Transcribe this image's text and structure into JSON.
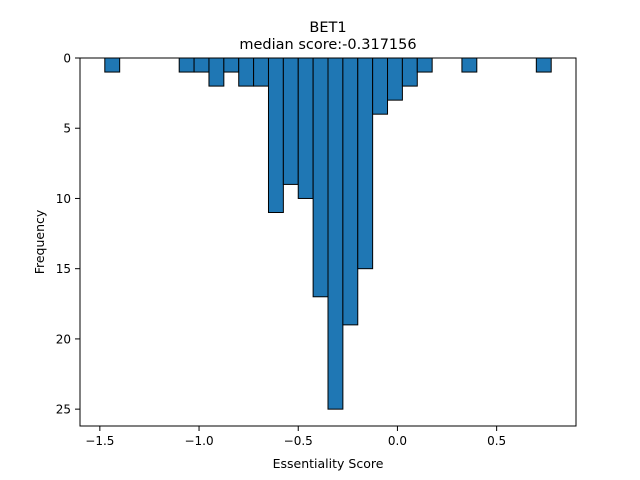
{
  "chart_data": {
    "type": "bar",
    "title": "BET1",
    "subtitle": "median score:-0.317156",
    "xlabel": "Essentiality Score",
    "ylabel": "Frequency",
    "xlim": [
      -1.6,
      0.9
    ],
    "ylim": [
      26.2,
      0
    ],
    "y_inverted": true,
    "grid": false,
    "legend": "none",
    "bar_color": "#1f77b4",
    "bar_edge_color": "#000000",
    "bin_width": 0.075,
    "x_ticks": [
      -1.5,
      -1.0,
      -0.5,
      0.0,
      0.5
    ],
    "x_tick_labels": [
      "−1.5",
      "−1.0",
      "−0.5",
      "0.0",
      "0.5"
    ],
    "y_ticks": [
      0,
      5,
      10,
      15,
      20,
      25
    ],
    "y_tick_labels": [
      "0",
      "5",
      "10",
      "15",
      "20",
      "25"
    ],
    "bins": [
      {
        "x0": -1.475,
        "x1": -1.4,
        "count": 1
      },
      {
        "x0": -1.4,
        "x1": -1.325,
        "count": 0
      },
      {
        "x0": -1.325,
        "x1": -1.25,
        "count": 0
      },
      {
        "x0": -1.25,
        "x1": -1.175,
        "count": 0
      },
      {
        "x0": -1.175,
        "x1": -1.1,
        "count": 0
      },
      {
        "x0": -1.1,
        "x1": -1.025,
        "count": 1
      },
      {
        "x0": -1.025,
        "x1": -0.95,
        "count": 1
      },
      {
        "x0": -0.95,
        "x1": -0.875,
        "count": 2
      },
      {
        "x0": -0.875,
        "x1": -0.8,
        "count": 1
      },
      {
        "x0": -0.8,
        "x1": -0.725,
        "count": 2
      },
      {
        "x0": -0.725,
        "x1": -0.65,
        "count": 2
      },
      {
        "x0": -0.65,
        "x1": -0.575,
        "count": 11
      },
      {
        "x0": -0.575,
        "x1": -0.5,
        "count": 9
      },
      {
        "x0": -0.5,
        "x1": -0.425,
        "count": 10
      },
      {
        "x0": -0.425,
        "x1": -0.35,
        "count": 17
      },
      {
        "x0": -0.35,
        "x1": -0.275,
        "count": 25
      },
      {
        "x0": -0.275,
        "x1": -0.2,
        "count": 19
      },
      {
        "x0": -0.2,
        "x1": -0.125,
        "count": 15
      },
      {
        "x0": -0.125,
        "x1": -0.05,
        "count": 4
      },
      {
        "x0": -0.05,
        "x1": 0.025,
        "count": 3
      },
      {
        "x0": 0.025,
        "x1": 0.1,
        "count": 2
      },
      {
        "x0": 0.1,
        "x1": 0.175,
        "count": 1
      },
      {
        "x0": 0.175,
        "x1": 0.25,
        "count": 0
      },
      {
        "x0": 0.25,
        "x1": 0.325,
        "count": 0
      },
      {
        "x0": 0.325,
        "x1": 0.4,
        "count": 1
      },
      {
        "x0": 0.4,
        "x1": 0.475,
        "count": 0
      },
      {
        "x0": 0.475,
        "x1": 0.55,
        "count": 0
      },
      {
        "x0": 0.55,
        "x1": 0.625,
        "count": 0
      },
      {
        "x0": 0.625,
        "x1": 0.7,
        "count": 0
      },
      {
        "x0": 0.7,
        "x1": 0.775,
        "count": 1
      }
    ]
  }
}
